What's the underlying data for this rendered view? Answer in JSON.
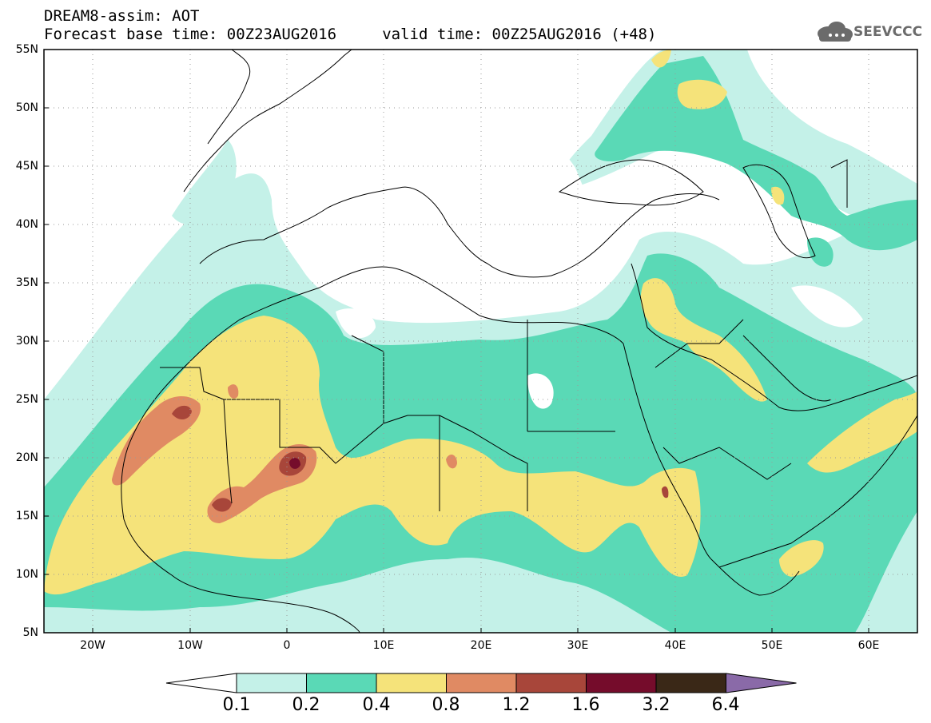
{
  "header": {
    "title_line1": "DREAM8-assim: AOT",
    "title_line2": "Forecast base time: 00Z23AUG2016     valid time: 00Z25AUG2016 (+48)",
    "logo_text": "SEEVCCC"
  },
  "map": {
    "lat_labels": [
      "55N",
      "50N",
      "45N",
      "40N",
      "35N",
      "30N",
      "25N",
      "20N",
      "15N",
      "10N",
      "5N"
    ],
    "lon_labels": [
      "20W",
      "10W",
      "0",
      "10E",
      "20E",
      "30E",
      "40E",
      "50E",
      "60E"
    ],
    "extent": {
      "lon_min": -25,
      "lon_max": 65,
      "lat_min": 5,
      "lat_max": 55
    }
  },
  "colorbar": {
    "labels": [
      "0.1",
      "0.2",
      "0.4",
      "0.8",
      "1.2",
      "1.6",
      "3.2",
      "6.4"
    ],
    "colors": [
      "#ffffff",
      "#c4f1e8",
      "#5ad9b6",
      "#f5e37a",
      "#e08a63",
      "#a8463a",
      "#750c2b",
      "#3a2817",
      "#8a6aa8"
    ]
  },
  "palette": {
    "level1": "#c4f1e8",
    "level2": "#5ad9b6",
    "level3": "#f5e37a",
    "level4": "#e08a63",
    "level5": "#a8463a",
    "level6": "#750c2b"
  }
}
